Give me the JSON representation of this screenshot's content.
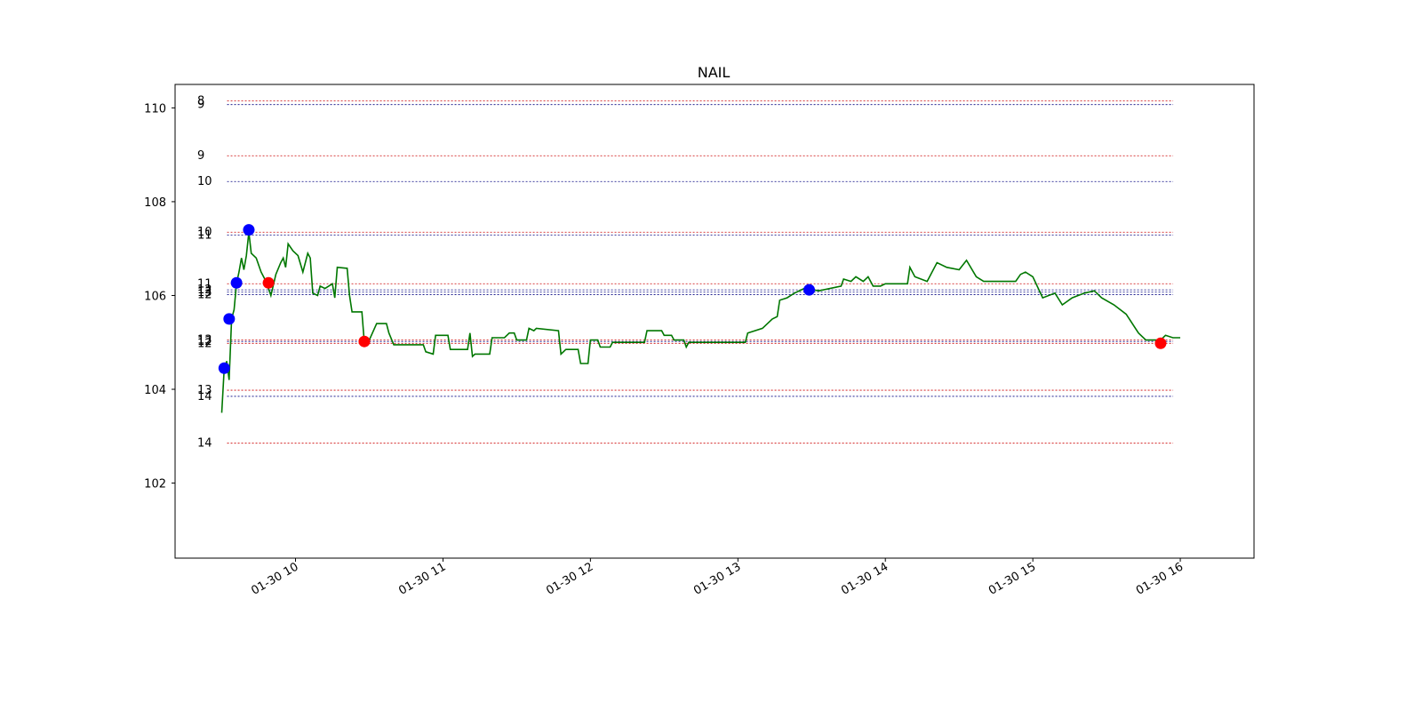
{
  "chart_data": {
    "type": "line",
    "title": "NAIL",
    "xlabel": "",
    "ylabel": "",
    "x_range": [
      "01-30 09:11",
      "01-30 16:30"
    ],
    "ylim": [
      100.4,
      110.5
    ],
    "x_ticks": [
      {
        "time": "01-30 10:00",
        "label": "01-30 10"
      },
      {
        "time": "01-30 11:00",
        "label": "01-30 11"
      },
      {
        "time": "01-30 12:00",
        "label": "01-30 12"
      },
      {
        "time": "01-30 13:00",
        "label": "01-30 13"
      },
      {
        "time": "01-30 14:00",
        "label": "01-30 14"
      },
      {
        "time": "01-30 15:00",
        "label": "01-30 15"
      },
      {
        "time": "01-30 16:00",
        "label": "01-30 16"
      }
    ],
    "y_ticks": [
      102,
      104,
      106,
      108,
      110
    ],
    "grid": false,
    "colors": {
      "price": "#007700",
      "buy": "#0000ff",
      "sell": "#ff0000",
      "support": "#000080",
      "resistance": "#cc0000",
      "frame": "#000000"
    },
    "series": [
      {
        "color": "#007700",
        "points": [
          [
            "01-30 09:30",
            103.5
          ],
          [
            "01-30 09:31",
            104.45
          ],
          [
            "01-30 09:32",
            104.6
          ],
          [
            "01-30 09:33",
            104.2
          ],
          [
            "01-30 09:34",
            105.5
          ],
          [
            "01-30 09:35",
            105.7
          ],
          [
            "01-30 09:36",
            106.25
          ],
          [
            "01-30 09:37",
            106.5
          ],
          [
            "01-30 09:38",
            106.8
          ],
          [
            "01-30 09:39",
            106.55
          ],
          [
            "01-30 09:40",
            106.85
          ],
          [
            "01-30 09:41",
            107.35
          ],
          [
            "01-30 09:42",
            106.9
          ],
          [
            "01-30 09:44",
            106.8
          ],
          [
            "01-30 09:46",
            106.5
          ],
          [
            "01-30 09:48",
            106.3
          ],
          [
            "01-30 09:50",
            106.0
          ],
          [
            "01-30 09:52",
            106.45
          ],
          [
            "01-30 09:54",
            106.7
          ],
          [
            "01-30 09:55",
            106.8
          ],
          [
            "01-30 09:56",
            106.6
          ],
          [
            "01-30 09:57",
            107.1
          ],
          [
            "01-30 09:59",
            106.95
          ],
          [
            "01-30 10:01",
            106.85
          ],
          [
            "01-30 10:03",
            106.5
          ],
          [
            "01-30 10:05",
            106.9
          ],
          [
            "01-30 10:06",
            106.8
          ],
          [
            "01-30 10:07",
            106.05
          ],
          [
            "01-30 10:09",
            106.0
          ],
          [
            "01-30 10:10",
            106.2
          ],
          [
            "01-30 10:12",
            106.15
          ],
          [
            "01-30 10:15",
            106.25
          ],
          [
            "01-30 10:16",
            105.95
          ],
          [
            "01-30 10:17",
            106.6
          ],
          [
            "01-30 10:21",
            106.58
          ],
          [
            "01-30 10:22",
            106.0
          ],
          [
            "01-30 10:23",
            105.65
          ],
          [
            "01-30 10:27",
            105.65
          ],
          [
            "01-30 10:28",
            105.0
          ],
          [
            "01-30 10:30",
            105.05
          ],
          [
            "01-30 10:33",
            105.4
          ],
          [
            "01-30 10:37",
            105.4
          ],
          [
            "01-30 10:38",
            105.2
          ],
          [
            "01-30 10:40",
            104.95
          ],
          [
            "01-30 10:52",
            104.95
          ],
          [
            "01-30 10:53",
            104.8
          ],
          [
            "01-30 10:56",
            104.75
          ],
          [
            "01-30 10:57",
            105.15
          ],
          [
            "01-30 11:02",
            105.15
          ],
          [
            "01-30 11:03",
            104.85
          ],
          [
            "01-30 11:10",
            104.85
          ],
          [
            "01-30 11:11",
            105.2
          ],
          [
            "01-30 11:12",
            104.7
          ],
          [
            "01-30 11:13",
            104.75
          ],
          [
            "01-30 11:19",
            104.75
          ],
          [
            "01-30 11:20",
            105.1
          ],
          [
            "01-30 11:25",
            105.1
          ],
          [
            "01-30 11:27",
            105.2
          ],
          [
            "01-30 11:29",
            105.2
          ],
          [
            "01-30 11:30",
            105.05
          ],
          [
            "01-30 11:34",
            105.05
          ],
          [
            "01-30 11:35",
            105.3
          ],
          [
            "01-30 11:37",
            105.25
          ],
          [
            "01-30 11:38",
            105.3
          ],
          [
            "01-30 11:47",
            105.25
          ],
          [
            "01-30 11:48",
            104.75
          ],
          [
            "01-30 11:50",
            104.85
          ],
          [
            "01-30 11:55",
            104.85
          ],
          [
            "01-30 11:56",
            104.55
          ],
          [
            "01-30 11:59",
            104.55
          ],
          [
            "01-30 12:00",
            105.05
          ],
          [
            "01-30 12:03",
            105.05
          ],
          [
            "01-30 12:04",
            104.9
          ],
          [
            "01-30 12:08",
            104.9
          ],
          [
            "01-30 12:09",
            105.0
          ],
          [
            "01-30 12:22",
            105.0
          ],
          [
            "01-30 12:23",
            105.25
          ],
          [
            "01-30 12:29",
            105.25
          ],
          [
            "01-30 12:30",
            105.15
          ],
          [
            "01-30 12:33",
            105.15
          ],
          [
            "01-30 12:34",
            105.05
          ],
          [
            "01-30 12:38",
            105.05
          ],
          [
            "01-30 12:39",
            104.9
          ],
          [
            "01-30 12:40",
            105.0
          ],
          [
            "01-30 13:03",
            105.0
          ],
          [
            "01-30 13:04",
            105.2
          ],
          [
            "01-30 13:10",
            105.3
          ],
          [
            "01-30 13:14",
            105.5
          ],
          [
            "01-30 13:16",
            105.55
          ],
          [
            "01-30 13:17",
            105.9
          ],
          [
            "01-30 13:20",
            105.95
          ],
          [
            "01-30 13:23",
            106.05
          ],
          [
            "01-30 13:27",
            106.15
          ],
          [
            "01-30 13:33",
            106.1
          ],
          [
            "01-30 13:42",
            106.2
          ],
          [
            "01-30 13:43",
            106.35
          ],
          [
            "01-30 13:46",
            106.3
          ],
          [
            "01-30 13:48",
            106.4
          ],
          [
            "01-30 13:51",
            106.3
          ],
          [
            "01-30 13:53",
            106.4
          ],
          [
            "01-30 13:55",
            106.2
          ],
          [
            "01-30 13:58",
            106.2
          ],
          [
            "01-30 14:00",
            106.25
          ],
          [
            "01-30 14:09",
            106.25
          ],
          [
            "01-30 14:10",
            106.6
          ],
          [
            "01-30 14:12",
            106.4
          ],
          [
            "01-30 14:17",
            106.3
          ],
          [
            "01-30 14:21",
            106.7
          ],
          [
            "01-30 14:25",
            106.6
          ],
          [
            "01-30 14:30",
            106.55
          ],
          [
            "01-30 14:33",
            106.75
          ],
          [
            "01-30 14:37",
            106.4
          ],
          [
            "01-30 14:40",
            106.3
          ],
          [
            "01-30 14:53",
            106.3
          ],
          [
            "01-30 14:55",
            106.45
          ],
          [
            "01-30 14:57",
            106.5
          ],
          [
            "01-30 15:00",
            106.4
          ],
          [
            "01-30 15:04",
            105.95
          ],
          [
            "01-30 15:09",
            106.05
          ],
          [
            "01-30 15:12",
            105.8
          ],
          [
            "01-30 15:16",
            105.95
          ],
          [
            "01-30 15:21",
            106.05
          ],
          [
            "01-30 15:25",
            106.1
          ],
          [
            "01-30 15:28",
            105.95
          ],
          [
            "01-30 15:33",
            105.8
          ],
          [
            "01-30 15:38",
            105.6
          ],
          [
            "01-30 15:43",
            105.2
          ],
          [
            "01-30 15:46",
            105.05
          ],
          [
            "01-30 15:52",
            105.05
          ],
          [
            "01-30 15:54",
            105.15
          ],
          [
            "01-30 15:57",
            105.1
          ],
          [
            "01-30 16:00",
            105.1
          ]
        ]
      }
    ],
    "markers": [
      {
        "time": "01-30 09:31",
        "value": 104.45,
        "color": "#0000ff"
      },
      {
        "time": "01-30 09:33",
        "value": 105.5,
        "color": "#0000ff"
      },
      {
        "time": "01-30 09:36",
        "value": 106.27,
        "color": "#0000ff"
      },
      {
        "time": "01-30 09:41",
        "value": 107.4,
        "color": "#0000ff"
      },
      {
        "time": "01-30 09:49",
        "value": 106.27,
        "color": "#ff0000"
      },
      {
        "time": "01-30 10:28",
        "value": 105.02,
        "color": "#ff0000"
      },
      {
        "time": "01-30 13:29",
        "value": 106.12,
        "color": "#0000ff"
      },
      {
        "time": "01-30 15:52",
        "value": 104.98,
        "color": "#ff0000"
      }
    ],
    "levels": [
      {
        "value": 110.15,
        "color": "#cc0000",
        "label": "8"
      },
      {
        "value": 110.07,
        "color": "#000080",
        "label": "9"
      },
      {
        "value": 108.98,
        "color": "#cc0000",
        "label": "9"
      },
      {
        "value": 108.43,
        "color": "#000080",
        "label": "10"
      },
      {
        "value": 107.35,
        "color": "#cc0000",
        "label": "10"
      },
      {
        "value": 107.29,
        "color": "#000080",
        "label": "11"
      },
      {
        "value": 106.25,
        "color": "#cc0000",
        "label": "11"
      },
      {
        "value": 106.12,
        "color": "#000080",
        "label": "12"
      },
      {
        "value": 106.07,
        "color": "#000080",
        "label": "13"
      },
      {
        "value": 106.02,
        "color": "#000080",
        "label": "12"
      },
      {
        "value": 105.05,
        "color": "#cc0000",
        "label": "13"
      },
      {
        "value": 105.02,
        "color": "#000080",
        "label": "12"
      },
      {
        "value": 104.98,
        "color": "#cc0000",
        "label": "12"
      },
      {
        "value": 103.98,
        "color": "#cc0000",
        "label": "13"
      },
      {
        "value": 103.85,
        "color": "#000080",
        "label": "14"
      },
      {
        "value": 102.85,
        "color": "#cc0000",
        "label": "14"
      }
    ]
  }
}
